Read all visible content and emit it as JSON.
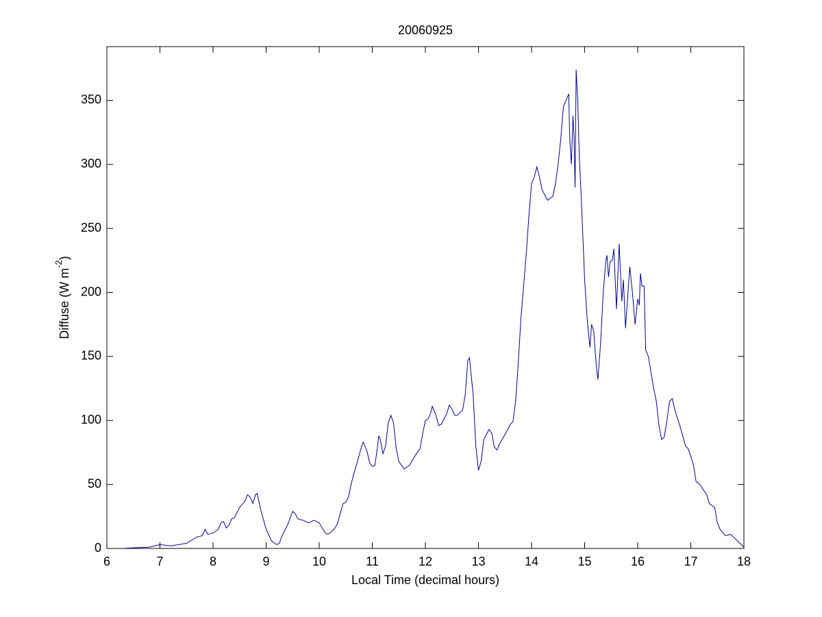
{
  "chart_data": {
    "type": "line",
    "title": "20060925",
    "x_label": "Local Time (decimal hours)",
    "y_label": {
      "text": "Diffuse (W m",
      "superscript": "-2",
      "suffix": ")"
    },
    "color": "#00008f",
    "xlim": [
      6,
      18
    ],
    "xticks": [
      6,
      7,
      8,
      9,
      10,
      11,
      12,
      13,
      14,
      15,
      16,
      17,
      18
    ],
    "ylim": [
      0,
      392
    ],
    "yticks": [
      0,
      50,
      100,
      150,
      200,
      250,
      300,
      350
    ],
    "x": [
      6.3,
      6.5,
      6.8,
      7.0,
      7.2,
      7.5,
      7.7,
      7.8,
      7.85,
      7.9,
      8.0,
      8.1,
      8.15,
      8.2,
      8.25,
      8.3,
      8.35,
      8.4,
      8.5,
      8.6,
      8.65,
      8.7,
      8.75,
      8.8,
      8.83,
      8.9,
      9.0,
      9.1,
      9.2,
      9.25,
      9.3,
      9.4,
      9.5,
      9.55,
      9.6,
      9.7,
      9.8,
      9.9,
      10.0,
      10.1,
      10.15,
      10.2,
      10.3,
      10.35,
      10.4,
      10.45,
      10.5,
      10.55,
      10.6,
      10.65,
      10.7,
      10.8,
      10.83,
      10.9,
      10.95,
      11.0,
      11.05,
      11.1,
      11.12,
      11.15,
      11.2,
      11.25,
      11.3,
      11.35,
      11.4,
      11.45,
      11.5,
      11.6,
      11.7,
      11.8,
      11.9,
      11.95,
      12.0,
      12.05,
      12.1,
      12.13,
      12.2,
      12.25,
      12.3,
      12.35,
      12.4,
      12.45,
      12.5,
      12.55,
      12.6,
      12.7,
      12.75,
      12.8,
      12.83,
      12.9,
      12.95,
      13.0,
      13.05,
      13.1,
      13.2,
      13.25,
      13.3,
      13.35,
      13.4,
      13.5,
      13.6,
      13.65,
      13.7,
      13.75,
      13.8,
      13.9,
      13.95,
      14.0,
      14.05,
      14.1,
      14.15,
      14.2,
      14.3,
      14.4,
      14.45,
      14.5,
      14.55,
      14.6,
      14.65,
      14.7,
      14.72,
      14.75,
      14.78,
      14.8,
      14.82,
      14.84,
      14.87,
      14.9,
      14.93,
      14.97,
      15.0,
      15.05,
      15.1,
      15.13,
      15.17,
      15.22,
      15.25,
      15.3,
      15.35,
      15.4,
      15.42,
      15.45,
      15.48,
      15.52,
      15.55,
      15.6,
      15.65,
      15.7,
      15.73,
      15.77,
      15.8,
      15.85,
      15.9,
      15.95,
      16.0,
      16.03,
      16.05,
      16.08,
      16.12,
      16.15,
      16.2,
      16.3,
      16.35,
      16.4,
      16.45,
      16.5,
      16.55,
      16.6,
      16.65,
      16.7,
      16.8,
      16.9,
      16.95,
      17.0,
      17.05,
      17.1,
      17.15,
      17.2,
      17.3,
      17.35,
      17.45,
      17.5,
      17.55,
      17.65,
      17.75,
      17.8,
      17.9,
      17.95,
      18.0
    ],
    "values": [
      0,
      0.5,
      1,
      3,
      2,
      4,
      9,
      10,
      15,
      11,
      12,
      15,
      20,
      21,
      16,
      18,
      23,
      24,
      32,
      37,
      42,
      40,
      35,
      42,
      43,
      30,
      15,
      6,
      3,
      4,
      10,
      18,
      29,
      27,
      23,
      22,
      20,
      22,
      20,
      13,
      11,
      12,
      16,
      20,
      28,
      35,
      36,
      40,
      50,
      58,
      65,
      80,
      83,
      76,
      67,
      64,
      65,
      80,
      88,
      85,
      74,
      80,
      98,
      104,
      98,
      78,
      68,
      62,
      65,
      72,
      78,
      90,
      100,
      101,
      106,
      111,
      104,
      96,
      97,
      101,
      105,
      112,
      109,
      104,
      104,
      108,
      120,
      147,
      149,
      120,
      80,
      61,
      68,
      85,
      93,
      90,
      79,
      77,
      82,
      89,
      97,
      99,
      115,
      145,
      180,
      230,
      260,
      285,
      290,
      298,
      290,
      280,
      272,
      275,
      285,
      300,
      320,
      345,
      350,
      355,
      320,
      300,
      338,
      322,
      282,
      374,
      350,
      305,
      280,
      240,
      210,
      178,
      157,
      175,
      170,
      142,
      132,
      160,
      200,
      225,
      229,
      212,
      224,
      225,
      234,
      187,
      238,
      193,
      210,
      172,
      190,
      220,
      200,
      175,
      195,
      190,
      215,
      205,
      205,
      155,
      150,
      125,
      115,
      96,
      85,
      87,
      100,
      115,
      117,
      108,
      95,
      80,
      78,
      72,
      65,
      52,
      51,
      48,
      42,
      35,
      32,
      20,
      15,
      10,
      11,
      9,
      5,
      3,
      1
    ]
  }
}
